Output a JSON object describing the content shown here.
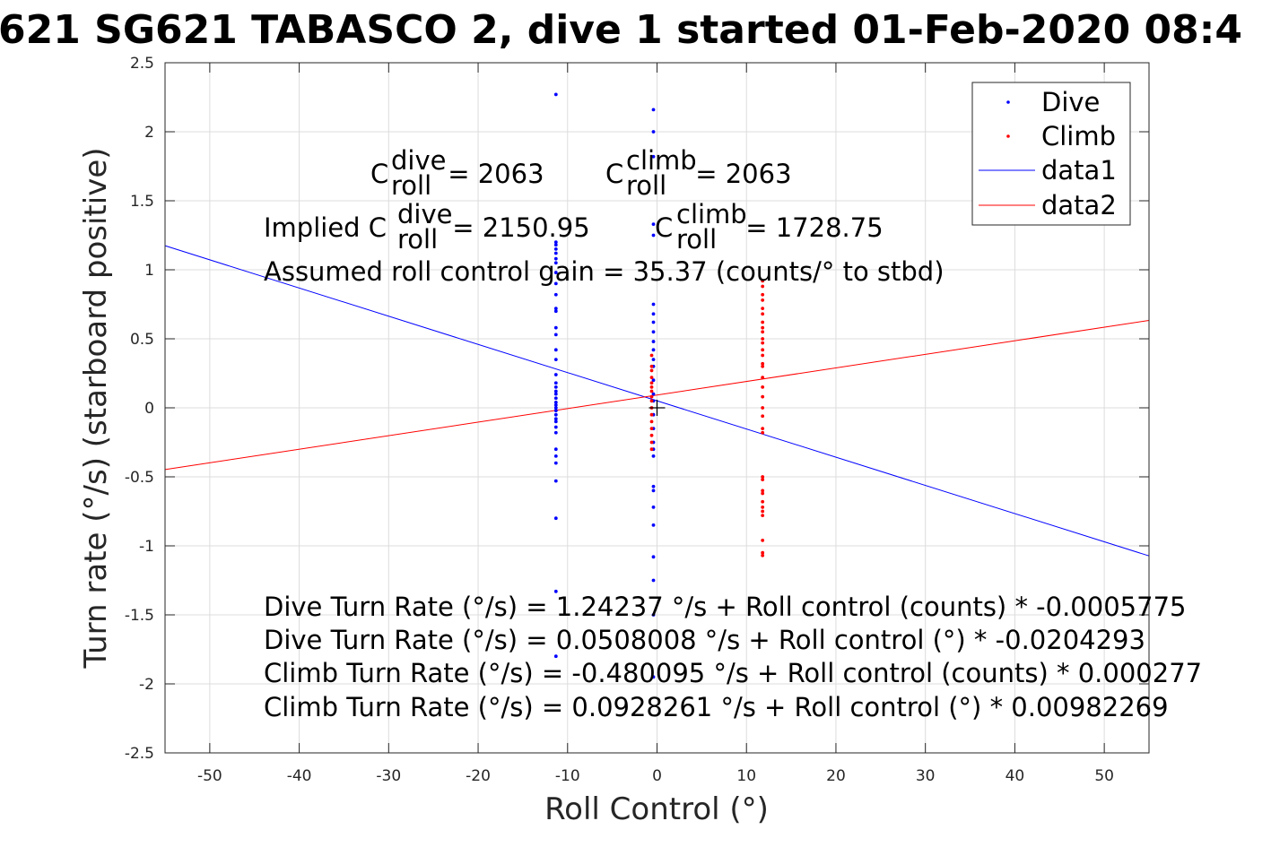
{
  "chart_data": {
    "type": "scatter",
    "title": "621 SG621 TABASCO 2, dive 1 started 01-Feb-2020 08:4",
    "xlabel": "Roll Control (°)",
    "ylabel": "Turn rate (°/s) (starboard positive)",
    "xlim": [
      -55,
      55
    ],
    "ylim": [
      -2.5,
      2.5
    ],
    "xticks": [
      -50,
      -40,
      -30,
      -20,
      -10,
      0,
      10,
      20,
      30,
      40,
      50
    ],
    "yticks": [
      -2.5,
      -2,
      -1.5,
      -1,
      -0.5,
      0,
      0.5,
      1,
      1.5,
      2,
      2.5
    ],
    "xtick_labels": [
      "-50",
      "-40",
      "-30",
      "-20",
      "-10",
      "0",
      "10",
      "20",
      "30",
      "40",
      "50"
    ],
    "ytick_labels": [
      "-2.5",
      "-2",
      "-1.5",
      "-1",
      "-0.5",
      "0",
      "0.5",
      "1",
      "1.5",
      "2",
      "2.5"
    ],
    "grid": true,
    "legend_position": "top-right",
    "legend": [
      "Dive",
      "Climb",
      "data1",
      "data2"
    ],
    "series": [
      {
        "name": "Dive",
        "kind": "scatter",
        "color": "#0000ff",
        "points": [
          [
            -11.3,
            2.27
          ],
          [
            -11.3,
            1.2
          ],
          [
            -11.3,
            1.18
          ],
          [
            -11.3,
            1.15
          ],
          [
            -11.3,
            1.12
          ],
          [
            -11.3,
            1.08
          ],
          [
            -11.3,
            1.05
          ],
          [
            -11.3,
            0.98
          ],
          [
            -11.3,
            0.9
          ],
          [
            -11.3,
            0.82
          ],
          [
            -11.3,
            0.72
          ],
          [
            -11.3,
            0.7
          ],
          [
            -11.3,
            0.58
          ],
          [
            -11.3,
            0.53
          ],
          [
            -11.3,
            0.42
          ],
          [
            -11.3,
            0.35
          ],
          [
            -11.3,
            0.24
          ],
          [
            -11.3,
            0.18
          ],
          [
            -11.3,
            0.15
          ],
          [
            -11.3,
            0.12
          ],
          [
            -11.3,
            0.1
          ],
          [
            -11.3,
            0.07
          ],
          [
            -11.3,
            0.04
          ],
          [
            -11.3,
            0.02
          ],
          [
            -11.3,
            0.0
          ],
          [
            -11.3,
            -0.02
          ],
          [
            -11.3,
            -0.05
          ],
          [
            -11.3,
            -0.08
          ],
          [
            -11.3,
            -0.1
          ],
          [
            -11.3,
            -0.14
          ],
          [
            -11.3,
            -0.18
          ],
          [
            -11.3,
            -0.3
          ],
          [
            -11.3,
            -0.35
          ],
          [
            -11.3,
            -0.4
          ],
          [
            -11.3,
            -0.53
          ],
          [
            -11.3,
            -0.8
          ],
          [
            -11.3,
            -1.33
          ],
          [
            -11.3,
            -1.8
          ],
          [
            -0.4,
            2.16
          ],
          [
            -0.4,
            2.0
          ],
          [
            -0.4,
            1.82
          ],
          [
            -0.4,
            1.33
          ],
          [
            -0.4,
            1.25
          ],
          [
            -0.4,
            0.75
          ],
          [
            -0.4,
            0.68
          ],
          [
            -0.4,
            0.62
          ],
          [
            -0.4,
            0.55
          ],
          [
            -0.4,
            0.48
          ],
          [
            -0.4,
            0.42
          ],
          [
            -0.4,
            0.35
          ],
          [
            -0.4,
            0.3
          ],
          [
            -0.4,
            0.2
          ],
          [
            -0.4,
            0.1
          ],
          [
            -0.4,
            0.05
          ],
          [
            -0.4,
            -0.05
          ],
          [
            -0.4,
            -0.15
          ],
          [
            -0.4,
            -0.25
          ],
          [
            -0.4,
            -0.3
          ],
          [
            -0.4,
            -0.35
          ],
          [
            -0.4,
            -0.57
          ],
          [
            -0.4,
            -0.6
          ],
          [
            -0.4,
            -0.72
          ],
          [
            -0.4,
            -0.85
          ],
          [
            -0.4,
            -1.08
          ],
          [
            -0.4,
            -1.25
          ],
          [
            -0.4,
            -1.5
          ],
          [
            -0.4,
            -1.95
          ]
        ]
      },
      {
        "name": "Climb",
        "kind": "scatter",
        "color": "#ff0000",
        "points": [
          [
            -0.6,
            0.38
          ],
          [
            -0.6,
            0.3
          ],
          [
            -0.6,
            0.27
          ],
          [
            -0.6,
            0.22
          ],
          [
            -0.6,
            0.18
          ],
          [
            -0.6,
            0.15
          ],
          [
            -0.6,
            0.12
          ],
          [
            -0.6,
            0.08
          ],
          [
            -0.6,
            0.05
          ],
          [
            -0.6,
            0.0
          ],
          [
            -0.6,
            -0.05
          ],
          [
            -0.6,
            -0.1
          ],
          [
            -0.6,
            -0.15
          ],
          [
            -0.6,
            -0.2
          ],
          [
            -0.6,
            -0.25
          ],
          [
            -0.6,
            -0.3
          ],
          [
            11.8,
            0.92
          ],
          [
            11.8,
            0.88
          ],
          [
            11.8,
            0.82
          ],
          [
            11.8,
            0.78
          ],
          [
            11.8,
            0.72
          ],
          [
            11.8,
            0.68
          ],
          [
            11.8,
            0.62
          ],
          [
            11.8,
            0.58
          ],
          [
            11.8,
            0.55
          ],
          [
            11.8,
            0.5
          ],
          [
            11.8,
            0.47
          ],
          [
            11.8,
            0.42
          ],
          [
            11.8,
            0.38
          ],
          [
            11.8,
            0.32
          ],
          [
            11.8,
            0.3
          ],
          [
            11.8,
            0.22
          ],
          [
            11.8,
            0.15
          ],
          [
            11.8,
            0.08
          ],
          [
            11.8,
            0.0
          ],
          [
            11.8,
            -0.06
          ],
          [
            11.8,
            -0.15
          ],
          [
            11.8,
            -0.18
          ],
          [
            11.8,
            -0.5
          ],
          [
            11.8,
            -0.52
          ],
          [
            11.8,
            -0.6
          ],
          [
            11.8,
            -0.62
          ],
          [
            11.8,
            -0.68
          ],
          [
            11.8,
            -0.72
          ],
          [
            11.8,
            -0.75
          ],
          [
            11.8,
            -0.78
          ],
          [
            11.8,
            -0.96
          ],
          [
            11.8,
            -1.05
          ],
          [
            11.8,
            -1.07
          ]
        ]
      },
      {
        "name": "data1",
        "kind": "line",
        "color": "#0000ff",
        "x": [
          -55,
          55
        ],
        "y": [
          1.1744,
          -1.0727
        ]
      },
      {
        "name": "data2",
        "kind": "line",
        "color": "#ff0000",
        "x": [
          -55,
          55
        ],
        "y": [
          -0.4474,
          0.6331
        ]
      }
    ],
    "marker": {
      "symbol": "+",
      "x": 0,
      "y": 0
    }
  },
  "annotations": {
    "c_dive": {
      "C": "C",
      "sup": "dive",
      "sub": "roll",
      "rest": " = 2063"
    },
    "c_climb": {
      "C": "C",
      "sup": "climb",
      "sub": "roll",
      "rest": " = 2063"
    },
    "implied_dive": {
      "prefix": "Implied C",
      "sup": "dive",
      "sub": "roll",
      "rest": " = 2150.95"
    },
    "implied_climb": {
      "C": "C",
      "sup": "climb",
      "sub": "roll",
      "rest": " = 1728.75"
    },
    "gain": "Assumed roll control gain = 35.37 (counts/° to stbd)",
    "eq1": "Dive Turn Rate (°/s) = 1.24237 °/s + Roll control (counts) * -0.0005775",
    "eq2": "Dive Turn Rate (°/s) = 0.0508008 °/s + Roll control (°) * -0.0204293",
    "eq3": "Climb Turn Rate (°/s) = -0.480095 °/s + Roll control (counts) * 0.000277",
    "eq4": "Climb Turn Rate (°/s) = 0.0928261 °/s + Roll control (°) * 0.00982269"
  }
}
